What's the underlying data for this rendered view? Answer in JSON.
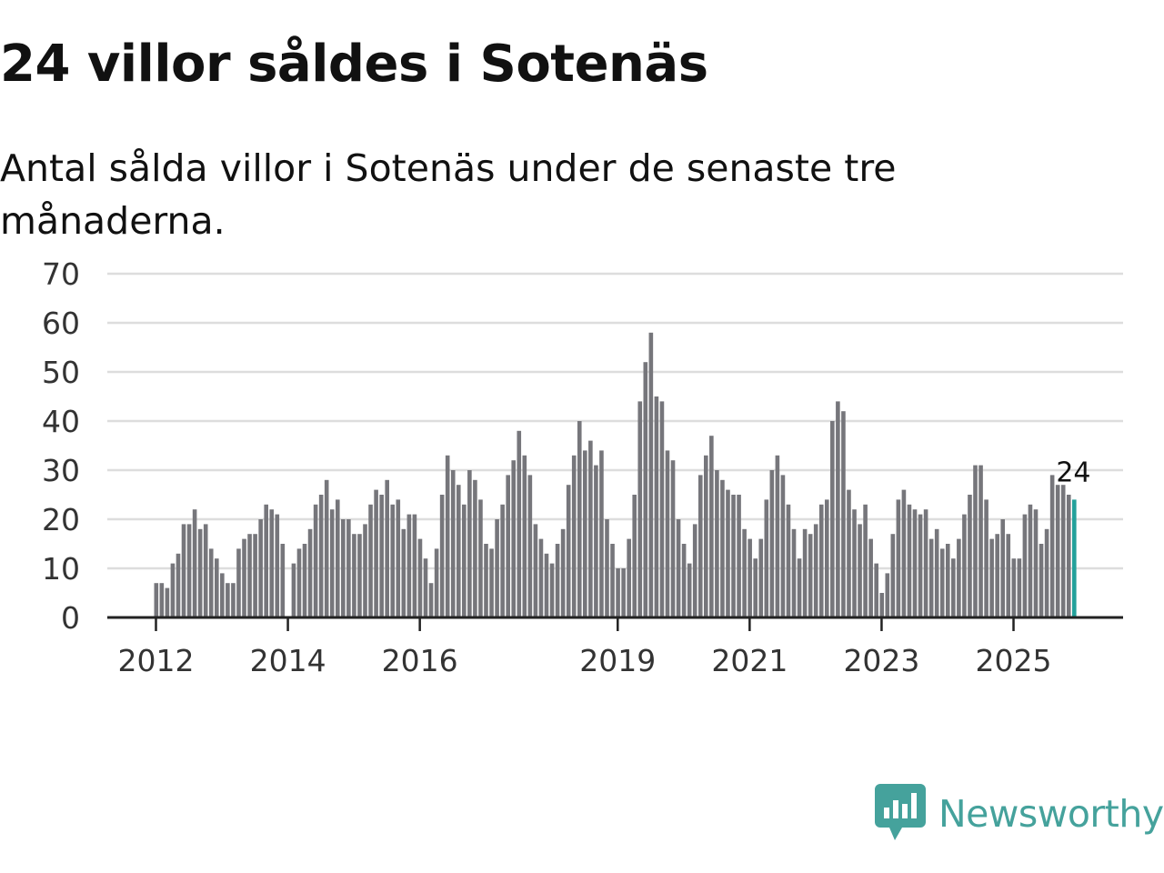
{
  "title": "24 villor såldes i Sotenäs",
  "subtitle": "Antal sålda villor i Sotenäs under de senaste tre månaderna.",
  "brand": {
    "name": "Newsworthy",
    "color": "#45a29c"
  },
  "colors": {
    "bar": "#76767b",
    "highlight": "#24a19b",
    "grid": "#dddddd",
    "axis": "#222222"
  },
  "chart_data": {
    "type": "bar",
    "title": "24 villor såldes i Sotenäs",
    "xlabel": "",
    "ylabel": "",
    "ylim": [
      0,
      70
    ],
    "yticks": [
      0,
      10,
      20,
      30,
      40,
      50,
      60,
      70
    ],
    "xtick_labels": [
      "2012",
      "2014",
      "2016",
      "2019",
      "2021",
      "2023",
      "2025"
    ],
    "start": "2012-01",
    "frequency": "monthly (rolling three months)",
    "highlight_last": true,
    "last_value_label": "24",
    "values": [
      7,
      7,
      6,
      11,
      13,
      19,
      19,
      22,
      18,
      19,
      14,
      12,
      9,
      7,
      7,
      14,
      16,
      17,
      17,
      20,
      23,
      22,
      21,
      15,
      0,
      11,
      14,
      15,
      18,
      23,
      25,
      28,
      22,
      24,
      20,
      20,
      17,
      17,
      19,
      23,
      26,
      25,
      28,
      23,
      24,
      18,
      21,
      21,
      16,
      12,
      7,
      14,
      25,
      33,
      30,
      27,
      23,
      30,
      28,
      24,
      15,
      14,
      20,
      23,
      29,
      32,
      38,
      33,
      29,
      19,
      16,
      13,
      11,
      15,
      18,
      27,
      33,
      40,
      34,
      36,
      31,
      34,
      20,
      15,
      10,
      10,
      16,
      25,
      44,
      52,
      58,
      45,
      44,
      34,
      32,
      20,
      15,
      11,
      19,
      29,
      33,
      37,
      30,
      28,
      26,
      25,
      25,
      18,
      16,
      12,
      16,
      24,
      30,
      33,
      29,
      23,
      18,
      12,
      18,
      17,
      19,
      23,
      24,
      40,
      44,
      42,
      26,
      22,
      19,
      23,
      16,
      11,
      5,
      9,
      17,
      24,
      26,
      23,
      22,
      21,
      22,
      16,
      18,
      14,
      15,
      12,
      16,
      21,
      25,
      31,
      31,
      24,
      16,
      17,
      20,
      17,
      12,
      12,
      21,
      23,
      22,
      15,
      18,
      29,
      27,
      27,
      25,
      24
    ]
  }
}
